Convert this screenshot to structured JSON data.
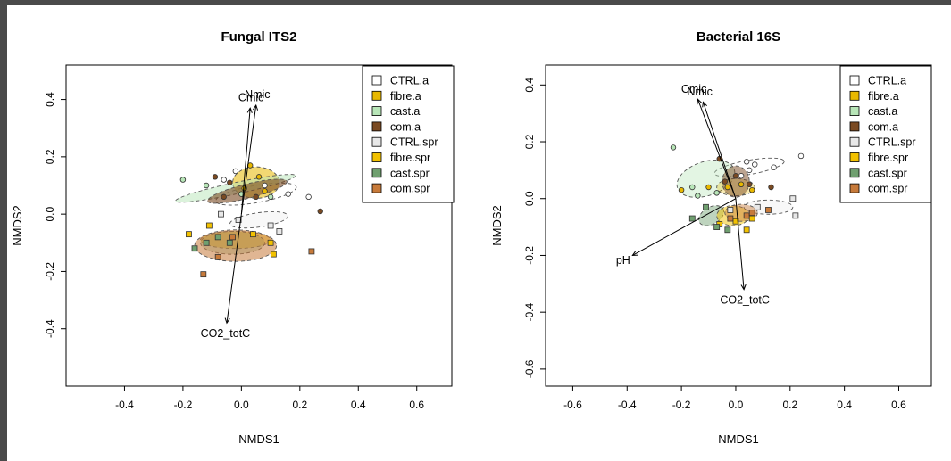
{
  "colors": {
    "CTRL.a": "#ffffff",
    "fibre.a": "#e8b800",
    "cast.a": "#b8e6b8",
    "com.a": "#7a4a22",
    "CTRL.spr": "#e8e8e8",
    "fibre.spr": "#f2c100",
    "cast.spr": "#6f9f6f",
    "com.spr": "#c77a3a"
  },
  "chart_data": [
    {
      "type": "scatter",
      "title": "Fungal ITS2",
      "xlabel": "NMDS1",
      "ylabel": "NMDS2",
      "xlim": [
        -0.6,
        0.72
      ],
      "ylim": [
        -0.6,
        0.52
      ],
      "xticks": [
        -0.4,
        -0.2,
        0.0,
        0.2,
        0.4,
        0.6
      ],
      "xtick_labels": [
        "-0.4",
        "-0.2",
        "0.0",
        "0.2",
        "0.4",
        "0.6"
      ],
      "yticks": [
        -0.4,
        -0.2,
        0.0,
        0.2,
        0.4
      ],
      "ytick_labels": [
        "-0.4",
        "-0.2",
        "0.0",
        "0.2",
        "0.4"
      ],
      "legend_position": "top-right",
      "legend": [
        {
          "name": "CTRL.a",
          "shape": "square"
        },
        {
          "name": "fibre.a",
          "shape": "square"
        },
        {
          "name": "cast.a",
          "shape": "square"
        },
        {
          "name": "com.a",
          "shape": "square"
        },
        {
          "name": "CTRL.spr",
          "shape": "square"
        },
        {
          "name": "fibre.spr",
          "shape": "square"
        },
        {
          "name": "cast.spr",
          "shape": "square"
        },
        {
          "name": "com.spr",
          "shape": "square"
        }
      ],
      "vectors": [
        {
          "label": "Nmic",
          "x": 0.05,
          "y": 0.38
        },
        {
          "label": "Cmic",
          "x": 0.03,
          "y": 0.37
        },
        {
          "label": "CO2_totC",
          "x": -0.05,
          "y": -0.38
        }
      ],
      "ellipses": [
        {
          "group": "CTRL.a",
          "cx": 0.05,
          "cy": 0.07,
          "rx": 0.14,
          "ry": 0.03,
          "angle": -10,
          "alpha": 0.1
        },
        {
          "group": "fibre.a",
          "cx": 0.05,
          "cy": 0.11,
          "rx": 0.08,
          "ry": 0.055,
          "angle": 0,
          "alpha": 0.55
        },
        {
          "group": "cast.a",
          "cx": -0.02,
          "cy": 0.09,
          "rx": 0.21,
          "ry": 0.02,
          "angle": -12,
          "alpha": 0.5
        },
        {
          "group": "com.a",
          "cx": 0.02,
          "cy": 0.08,
          "rx": 0.14,
          "ry": 0.025,
          "angle": -14,
          "alpha": 0.6
        },
        {
          "group": "CTRL.spr",
          "cx": 0.06,
          "cy": -0.02,
          "rx": 0.1,
          "ry": 0.025,
          "angle": -8,
          "alpha": 0.3
        },
        {
          "group": "fibre.spr",
          "cx": -0.02,
          "cy": -0.09,
          "rx": 0.12,
          "ry": 0.03,
          "angle": 0,
          "alpha": 0.5
        },
        {
          "group": "cast.spr",
          "cx": -0.03,
          "cy": -0.1,
          "rx": 0.11,
          "ry": 0.04,
          "angle": 0,
          "alpha": 0.35
        },
        {
          "group": "com.spr",
          "cx": -0.02,
          "cy": -0.11,
          "rx": 0.14,
          "ry": 0.055,
          "angle": 0,
          "alpha": 0.55
        }
      ],
      "points": [
        {
          "group": "CTRL.a",
          "shape": "circle",
          "x": -0.02,
          "y": 0.15
        },
        {
          "group": "CTRL.a",
          "shape": "circle",
          "x": 0.08,
          "y": 0.1
        },
        {
          "group": "CTRL.a",
          "shape": "circle",
          "x": 0.16,
          "y": 0.07
        },
        {
          "group": "CTRL.a",
          "shape": "circle",
          "x": 0.23,
          "y": 0.06
        },
        {
          "group": "CTRL.a",
          "shape": "circle",
          "x": -0.06,
          "y": 0.12
        },
        {
          "group": "fibre.a",
          "shape": "circle",
          "x": 0.03,
          "y": 0.17
        },
        {
          "group": "fibre.a",
          "shape": "circle",
          "x": 0.06,
          "y": 0.13
        },
        {
          "group": "fibre.a",
          "shape": "circle",
          "x": 0.01,
          "y": 0.09
        },
        {
          "group": "fibre.a",
          "shape": "circle",
          "x": 0.08,
          "y": 0.08
        },
        {
          "group": "cast.a",
          "shape": "circle",
          "x": -0.2,
          "y": 0.12
        },
        {
          "group": "cast.a",
          "shape": "circle",
          "x": -0.12,
          "y": 0.1
        },
        {
          "group": "cast.a",
          "shape": "circle",
          "x": 0.0,
          "y": 0.07
        },
        {
          "group": "cast.a",
          "shape": "circle",
          "x": 0.1,
          "y": 0.06
        },
        {
          "group": "com.a",
          "shape": "circle",
          "x": -0.09,
          "y": 0.13
        },
        {
          "group": "com.a",
          "shape": "circle",
          "x": -0.04,
          "y": 0.11
        },
        {
          "group": "com.a",
          "shape": "circle",
          "x": 0.05,
          "y": 0.06
        },
        {
          "group": "com.a",
          "shape": "circle",
          "x": -0.06,
          "y": 0.06
        },
        {
          "group": "com.a",
          "shape": "circle",
          "x": 0.27,
          "y": 0.01
        },
        {
          "group": "CTRL.spr",
          "shape": "square",
          "x": -0.07,
          "y": 0.0
        },
        {
          "group": "CTRL.spr",
          "shape": "square",
          "x": -0.01,
          "y": -0.02
        },
        {
          "group": "CTRL.spr",
          "shape": "square",
          "x": 0.1,
          "y": -0.04
        },
        {
          "group": "CTRL.spr",
          "shape": "square",
          "x": 0.13,
          "y": -0.06
        },
        {
          "group": "fibre.spr",
          "shape": "square",
          "x": -0.18,
          "y": -0.07
        },
        {
          "group": "fibre.spr",
          "shape": "square",
          "x": -0.11,
          "y": -0.04
        },
        {
          "group": "fibre.spr",
          "shape": "square",
          "x": 0.04,
          "y": -0.07
        },
        {
          "group": "fibre.spr",
          "shape": "square",
          "x": 0.1,
          "y": -0.1
        },
        {
          "group": "fibre.spr",
          "shape": "square",
          "x": 0.11,
          "y": -0.14
        },
        {
          "group": "cast.spr",
          "shape": "square",
          "x": -0.16,
          "y": -0.12
        },
        {
          "group": "cast.spr",
          "shape": "square",
          "x": -0.12,
          "y": -0.1
        },
        {
          "group": "cast.spr",
          "shape": "square",
          "x": -0.08,
          "y": -0.08
        },
        {
          "group": "cast.spr",
          "shape": "square",
          "x": -0.04,
          "y": -0.1
        },
        {
          "group": "com.spr",
          "shape": "square",
          "x": -0.13,
          "y": -0.21
        },
        {
          "group": "com.spr",
          "shape": "square",
          "x": -0.08,
          "y": -0.15
        },
        {
          "group": "com.spr",
          "shape": "square",
          "x": -0.03,
          "y": -0.08
        },
        {
          "group": "com.spr",
          "shape": "square",
          "x": 0.24,
          "y": -0.13
        }
      ]
    },
    {
      "type": "scatter",
      "title": "Bacterial 16S",
      "xlabel": "NMDS1",
      "ylabel": "NMDS2",
      "xlim": [
        -0.7,
        0.72
      ],
      "ylim": [
        -0.66,
        0.47
      ],
      "xticks": [
        -0.6,
        -0.4,
        -0.2,
        0.0,
        0.2,
        0.4,
        0.6
      ],
      "xtick_labels": [
        "-0.6",
        "-0.4",
        "-0.2",
        "0.0",
        "0.2",
        "0.4",
        "0.6"
      ],
      "yticks": [
        -0.6,
        -0.4,
        -0.2,
        0.0,
        0.2,
        0.4
      ],
      "ytick_labels": [
        "-0.6",
        "-0.4",
        "-0.2",
        "0.0",
        "0.2",
        "0.4"
      ],
      "legend_position": "top-right",
      "legend": [
        {
          "name": "CTRL.a",
          "shape": "square"
        },
        {
          "name": "fibre.a",
          "shape": "square"
        },
        {
          "name": "cast.a",
          "shape": "square"
        },
        {
          "name": "com.a",
          "shape": "square"
        },
        {
          "name": "CTRL.spr",
          "shape": "square"
        },
        {
          "name": "fibre.spr",
          "shape": "square"
        },
        {
          "name": "cast.spr",
          "shape": "square"
        },
        {
          "name": "com.spr",
          "shape": "square"
        }
      ],
      "vectors": [
        {
          "label": "Cmic",
          "x": -0.14,
          "y": 0.35
        },
        {
          "label": "Nmic",
          "x": -0.12,
          "y": 0.34
        },
        {
          "label": "pH",
          "x": -0.38,
          "y": -0.2
        },
        {
          "label": "CO2_totC",
          "x": 0.03,
          "y": -0.32
        }
      ],
      "ellipses": [
        {
          "group": "CTRL.a",
          "cx": 0.05,
          "cy": 0.11,
          "rx": 0.13,
          "ry": 0.025,
          "angle": -10,
          "alpha": 0.1
        },
        {
          "group": "cast.a",
          "cx": -0.11,
          "cy": 0.07,
          "rx": 0.11,
          "ry": 0.06,
          "angle": -18,
          "alpha": 0.4
        },
        {
          "group": "fibre.a",
          "cx": 0.0,
          "cy": 0.04,
          "rx": 0.07,
          "ry": 0.03,
          "angle": 0,
          "alpha": 0.3
        },
        {
          "group": "com.a",
          "cx": 0.0,
          "cy": 0.06,
          "rx": 0.05,
          "ry": 0.055,
          "angle": 0,
          "alpha": 0.5
        },
        {
          "group": "CTRL.spr",
          "cx": 0.12,
          "cy": -0.03,
          "rx": 0.09,
          "ry": 0.025,
          "angle": 0,
          "alpha": 0.3
        },
        {
          "group": "cast.spr",
          "cx": -0.09,
          "cy": -0.06,
          "rx": 0.05,
          "ry": 0.03,
          "angle": -30,
          "alpha": 0.45
        },
        {
          "group": "fibre.spr",
          "cx": -0.01,
          "cy": -0.06,
          "rx": 0.06,
          "ry": 0.035,
          "angle": 0,
          "alpha": 0.5
        },
        {
          "group": "com.spr",
          "cx": 0.02,
          "cy": -0.05,
          "rx": 0.06,
          "ry": 0.03,
          "angle": 0,
          "alpha": 0.45
        }
      ],
      "points": [
        {
          "group": "CTRL.a",
          "shape": "circle",
          "x": 0.24,
          "y": 0.15
        },
        {
          "group": "CTRL.a",
          "shape": "circle",
          "x": 0.14,
          "y": 0.11
        },
        {
          "group": "CTRL.a",
          "shape": "circle",
          "x": 0.07,
          "y": 0.12
        },
        {
          "group": "CTRL.a",
          "shape": "circle",
          "x": 0.05,
          "y": 0.1
        },
        {
          "group": "CTRL.a",
          "shape": "circle",
          "x": 0.02,
          "y": 0.08
        },
        {
          "group": "CTRL.a",
          "shape": "circle",
          "x": 0.04,
          "y": 0.13
        },
        {
          "group": "fibre.a",
          "shape": "circle",
          "x": -0.2,
          "y": 0.03
        },
        {
          "group": "fibre.a",
          "shape": "circle",
          "x": -0.1,
          "y": 0.04
        },
        {
          "group": "fibre.a",
          "shape": "circle",
          "x": -0.03,
          "y": 0.04
        },
        {
          "group": "fibre.a",
          "shape": "circle",
          "x": 0.02,
          "y": 0.05
        },
        {
          "group": "fibre.a",
          "shape": "circle",
          "x": 0.06,
          "y": 0.03
        },
        {
          "group": "cast.a",
          "shape": "circle",
          "x": -0.23,
          "y": 0.18
        },
        {
          "group": "cast.a",
          "shape": "circle",
          "x": -0.16,
          "y": 0.04
        },
        {
          "group": "cast.a",
          "shape": "circle",
          "x": -0.14,
          "y": 0.01
        },
        {
          "group": "cast.a",
          "shape": "circle",
          "x": -0.07,
          "y": 0.02
        },
        {
          "group": "com.a",
          "shape": "circle",
          "x": -0.06,
          "y": 0.14
        },
        {
          "group": "com.a",
          "shape": "circle",
          "x": -0.04,
          "y": 0.06
        },
        {
          "group": "com.a",
          "shape": "circle",
          "x": 0.0,
          "y": 0.08
        },
        {
          "group": "com.a",
          "shape": "circle",
          "x": 0.05,
          "y": 0.05
        },
        {
          "group": "com.a",
          "shape": "circle",
          "x": 0.13,
          "y": 0.04
        },
        {
          "group": "CTRL.spr",
          "shape": "square",
          "x": 0.21,
          "y": 0.0
        },
        {
          "group": "CTRL.spr",
          "shape": "square",
          "x": 0.22,
          "y": -0.06
        },
        {
          "group": "CTRL.spr",
          "shape": "square",
          "x": 0.08,
          "y": -0.03
        },
        {
          "group": "CTRL.spr",
          "shape": "square",
          "x": -0.02,
          "y": -0.04
        },
        {
          "group": "fibre.spr",
          "shape": "square",
          "x": 0.04,
          "y": -0.11
        },
        {
          "group": "fibre.spr",
          "shape": "square",
          "x": 0.0,
          "y": -0.08
        },
        {
          "group": "fibre.spr",
          "shape": "square",
          "x": -0.06,
          "y": -0.09
        },
        {
          "group": "fibre.spr",
          "shape": "square",
          "x": 0.06,
          "y": -0.07
        },
        {
          "group": "cast.spr",
          "shape": "square",
          "x": -0.16,
          "y": -0.07
        },
        {
          "group": "cast.spr",
          "shape": "square",
          "x": -0.11,
          "y": -0.03
        },
        {
          "group": "cast.spr",
          "shape": "square",
          "x": -0.07,
          "y": -0.1
        },
        {
          "group": "cast.spr",
          "shape": "square",
          "x": -0.03,
          "y": -0.11
        },
        {
          "group": "com.spr",
          "shape": "square",
          "x": 0.12,
          "y": -0.04
        },
        {
          "group": "com.spr",
          "shape": "square",
          "x": 0.04,
          "y": -0.06
        },
        {
          "group": "com.spr",
          "shape": "square",
          "x": -0.02,
          "y": -0.07
        },
        {
          "group": "com.spr",
          "shape": "square",
          "x": 0.06,
          "y": -0.05
        }
      ]
    }
  ]
}
